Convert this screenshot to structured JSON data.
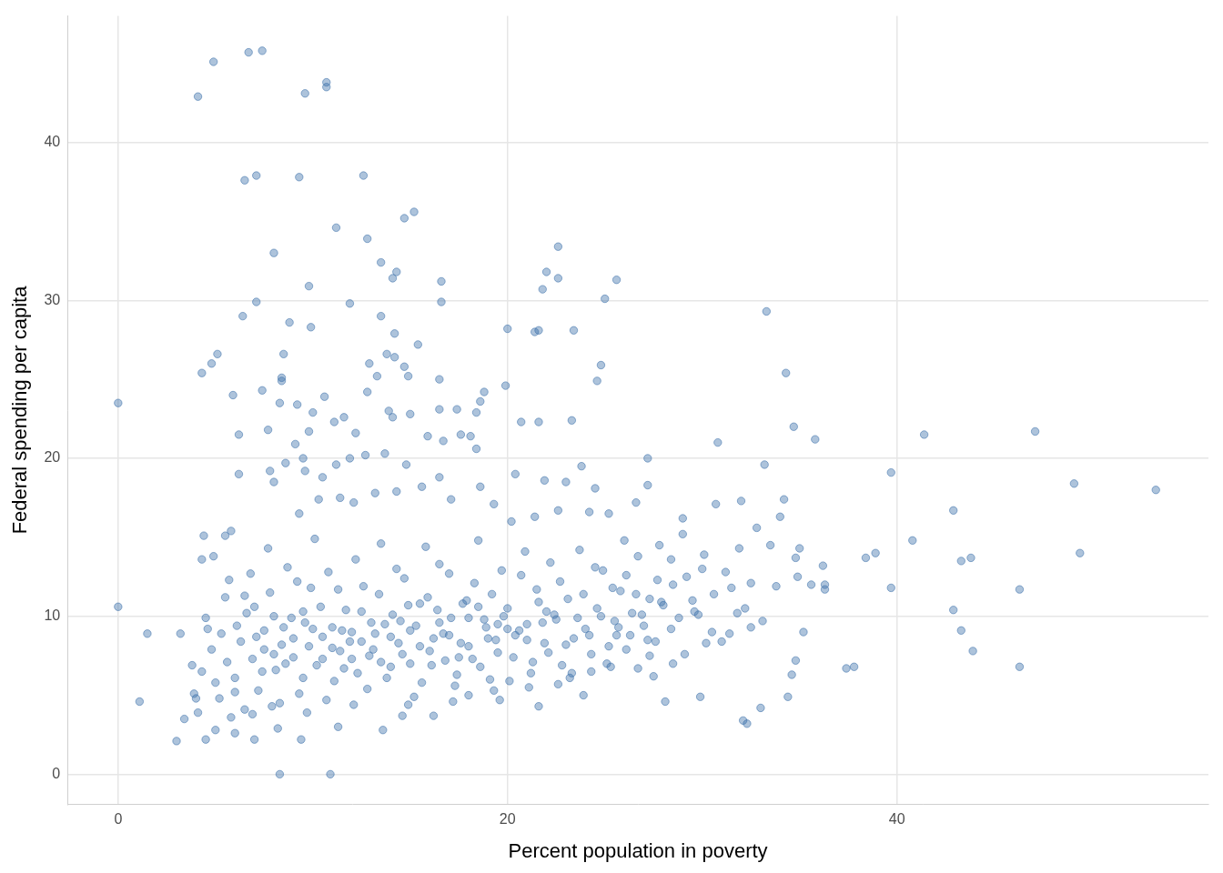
{
  "chart_data": {
    "type": "scatter",
    "x_label": "Percent population in poverty",
    "y_label": "Federal spending per capita",
    "color": "#3b6fa9",
    "marker": "circle",
    "grid": true,
    "xlim": [
      -2.6,
      56
    ],
    "ylim": [
      -1.9,
      48
    ],
    "xticks": [
      0,
      20,
      40
    ],
    "yticks": [
      0,
      10,
      20,
      30,
      40
    ],
    "x": [
      0,
      0,
      1.1,
      1.5,
      3,
      3.2,
      3.4,
      4.1,
      4.3,
      4.9,
      4.8,
      5.1,
      6.5,
      6.7,
      7.1,
      7.4,
      9.3,
      9.6,
      10.7,
      10.7,
      12.6,
      11.2,
      12.8,
      13.5,
      14.1,
      14.3,
      14.7,
      15.2,
      9.8,
      7.1,
      6.4,
      8.0,
      11.9,
      9.9,
      8.8,
      13.5,
      14.2,
      15.4,
      16.6,
      16.6,
      22,
      21.8,
      22.6,
      21.4,
      21.6,
      22.6,
      25,
      25.6,
      23.4,
      20,
      24.6,
      24.8,
      33.3,
      34.3,
      34.7,
      35.8,
      30.8,
      41.4,
      47.1,
      49.1,
      53.3,
      39.7,
      40.8,
      42.9,
      43.3,
      43.8,
      43.9,
      43.3,
      42.9,
      46.3,
      46.3,
      49.4,
      39.7,
      38.4,
      38.9,
      37.4,
      37.8,
      34.6,
      34.4,
      33.0,
      32.3,
      32.1,
      29.9,
      28.1,
      8.3,
      10.9,
      9.4,
      36.3,
      36.3,
      36.2,
      35.6,
      35,
      34.8,
      34.9,
      34.2,
      34,
      33.2,
      29,
      30.7,
      32,
      32.8,
      31.9,
      33.5,
      35.2,
      34.8,
      32.5,
      32.2,
      31.5,
      30,
      29,
      27.2,
      27.2,
      26.6,
      25.2,
      26.1,
      27.8,
      28.5,
      29.5,
      30.5,
      31,
      28.5,
      28.4,
      27.2,
      26.7,
      25.6,
      24.3,
      23.9,
      22.6,
      21.6,
      19.6,
      18,
      16.2,
      14.6,
      13.6,
      11.3,
      8.2,
      7.0,
      6.0,
      5.0,
      4.5,
      4.1,
      3.9,
      4.3,
      4.8,
      4.6,
      4.9,
      4.3,
      4.4,
      5.5,
      5.8,
      5.7,
      5.5,
      6.2,
      6.2,
      5.9,
      7.4,
      7.7,
      8.0,
      8.4,
      8.5,
      8.4,
      8.3,
      9.2,
      9.5,
      9.8,
      10,
      10.6,
      11.1,
      11.6,
      12.2,
      12.8,
      12.9,
      13.3,
      13.8,
      14.2,
      14.7,
      14.9,
      13.9,
      14.1,
      15.0,
      16.5,
      16.5,
      17.4,
      18.4,
      18.6,
      18.8,
      19.9,
      20.7,
      21.6,
      23.3,
      18.4,
      18.1,
      17.6,
      16.7,
      15.9,
      14.8,
      13.7,
      12.7,
      11.9,
      11.2,
      10.5,
      9.6,
      9.1,
      8.6,
      7.8,
      20.4,
      21.9,
      23,
      23.8,
      24.5,
      24.2,
      22.6,
      21.4,
      20.2,
      19.3,
      18.6,
      17.1,
      16.5,
      15.6,
      14.3,
      13.2,
      12.1,
      11.4,
      10.3,
      9.3,
      6,
      6.3,
      6.6,
      6.9,
      7.2,
      7.5,
      7.8,
      8.1,
      8.4,
      8.7,
      9,
      9.3,
      9.6,
      9.9,
      10.2,
      10.5,
      10.8,
      11.1,
      11.4,
      11.7,
      12,
      12.3,
      12.6,
      12.9,
      13.2,
      13.5,
      13.8,
      14.1,
      14.4,
      14.7,
      15,
      15.3,
      15.6,
      15.9,
      16.2,
      16.5,
      16.8,
      17.1,
      17.4,
      17.7,
      18,
      18.3,
      18.6,
      18.9,
      19.2,
      19.5,
      19.8,
      20.1,
      20.4,
      20.7,
      21,
      21.3,
      21.6,
      21.9,
      22.2,
      22.5,
      22.8,
      23.1,
      23.4,
      23.7,
      24,
      24.3,
      24.6,
      24.9,
      25.2,
      25.5,
      25.8,
      26.1,
      26.4,
      26.7,
      27,
      27.3,
      27.6,
      28,
      28.4,
      28.8,
      29.2,
      29.6,
      30.1,
      30.6,
      31.2,
      31.8,
      32.5,
      33.1,
      33.8,
      5.2,
      5.6,
      6.1,
      6.5,
      6.8,
      7.1,
      7.4,
      7.7,
      8,
      8.3,
      8.6,
      8.9,
      9.2,
      9.5,
      9.8,
      10.1,
      10.4,
      10.7,
      11,
      11.3,
      11.6,
      11.9,
      12.2,
      12.5,
      12.8,
      13.1,
      13.4,
      13.7,
      14,
      14.3,
      14.6,
      14.9,
      15.2,
      15.5,
      15.8,
      16.1,
      16.4,
      16.7,
      17,
      17.3,
      17.6,
      17.9,
      18.2,
      18.5,
      18.8,
      19.1,
      19.4,
      19.7,
      20,
      20.3,
      20.6,
      20.9,
      21.2,
      21.5,
      21.8,
      22.1,
      22.4,
      22.7,
      23,
      23.3,
      23.6,
      23.9,
      24.2,
      24.5,
      24.8,
      25.1,
      25.4,
      25.7,
      26,
      26.3,
      26.6,
      26.9,
      27.3,
      27.7,
      9,
      10,
      11,
      12,
      13,
      14,
      15,
      16,
      17,
      18,
      19,
      20,
      21,
      22,
      8,
      7,
      6,
      5,
      4,
      3.8,
      4.5,
      5.3,
      12.5,
      13.5,
      14.5,
      15.5,
      16.5,
      17.5,
      18.5,
      19.5,
      11.5,
      10.5,
      9.5,
      8.5,
      7.5,
      6.5,
      5.8,
      6.9,
      7.9,
      9.7,
      12.1,
      14.9,
      17.2,
      19.3,
      21.1,
      23.2,
      25.3,
      27.5,
      29.1,
      30.2,
      31.4,
      29.8,
      27.9
    ],
    "values": [
      23.5,
      10.6,
      4.6,
      8.9,
      2.1,
      8.9,
      3.5,
      42.9,
      25.4,
      45.1,
      26,
      26.6,
      37.6,
      45.7,
      37.9,
      45.8,
      37.8,
      43.1,
      43.8,
      43.5,
      37.9,
      34.6,
      33.9,
      32.4,
      31.4,
      31.8,
      35.2,
      35.6,
      30.9,
      29.9,
      29,
      33,
      29.8,
      28.3,
      28.6,
      29,
      27.9,
      27.2,
      31.2,
      29.9,
      31.8,
      30.7,
      31.4,
      28,
      28.1,
      33.4,
      30.1,
      31.3,
      28.1,
      28.2,
      24.9,
      25.9,
      29.3,
      25.4,
      22,
      21.2,
      21,
      21.5,
      21.7,
      18.4,
      18,
      19.1,
      14.8,
      16.7,
      13.5,
      13.7,
      7.8,
      9.1,
      10.4,
      11.7,
      6.8,
      14,
      11.8,
      13.7,
      14,
      6.7,
      6.8,
      6.3,
      4.9,
      4.2,
      3.2,
      3.4,
      4.9,
      4.6,
      0,
      0,
      2.2,
      12,
      11.7,
      13.2,
      12,
      14.3,
      13.7,
      12.5,
      17.4,
      16.3,
      19.6,
      16.2,
      17.1,
      17.3,
      15.6,
      14.3,
      14.5,
      9,
      7.2,
      9.3,
      10.5,
      11.8,
      13,
      15.2,
      20,
      18.3,
      17.2,
      16.5,
      12.6,
      14.5,
      12,
      11,
      9,
      8.4,
      7,
      9.2,
      8.5,
      6.7,
      8.8,
      6.5,
      5,
      5.7,
      4.3,
      4.7,
      5,
      3.7,
      3.7,
      2.8,
      3,
      2.9,
      2.2,
      2.6,
      2.8,
      2.2,
      3.9,
      5.1,
      6.5,
      7.9,
      9.2,
      13.8,
      13.6,
      15.1,
      15.1,
      15.4,
      12.3,
      11.2,
      21.5,
      19,
      24,
      24.3,
      21.8,
      18.5,
      25.1,
      26.6,
      24.9,
      23.5,
      23.4,
      20,
      21.7,
      22.9,
      23.9,
      22.3,
      22.6,
      21.6,
      24.2,
      26,
      25.2,
      26.6,
      26.4,
      25.8,
      25.2,
      23,
      22.6,
      22.8,
      25,
      23.1,
      23.1,
      22.9,
      23.6,
      24.2,
      24.6,
      22.3,
      22.3,
      22.4,
      20.6,
      21.4,
      21.5,
      21.1,
      21.4,
      19.6,
      20.3,
      20.2,
      20,
      19.6,
      18.8,
      19.2,
      20.9,
      19.7,
      19.2,
      19,
      18.6,
      18.5,
      19.5,
      18.1,
      16.6,
      16.7,
      16.3,
      16,
      17.1,
      18.2,
      17.4,
      18.8,
      18.2,
      17.9,
      17.8,
      17.2,
      17.5,
      17.4,
      16.5,
      6.1,
      8.4,
      10.2,
      7.3,
      5.3,
      9.1,
      11.5,
      6.6,
      8.2,
      13.1,
      7.4,
      5.1,
      9.6,
      11.8,
      6.9,
      8.7,
      12.8,
      5.9,
      7.8,
      10.4,
      9,
      6.4,
      11.9,
      7.5,
      8.9,
      14.6,
      6.1,
      10.1,
      8.3,
      12.4,
      7,
      9.4,
      5.8,
      11.2,
      8.6,
      13.3,
      7.2,
      9.9,
      6.3,
      10.8,
      8.1,
      12.1,
      6.8,
      9.3,
      11.4,
      7.7,
      10,
      5.9,
      8.8,
      12.6,
      9.5,
      7.1,
      10.9,
      8.3,
      13.4,
      9.8,
      6.9,
      11.1,
      8.6,
      14.2,
      9.2,
      7.6,
      10.5,
      12.9,
      8.1,
      9.7,
      11.6,
      7.9,
      10.2,
      13.8,
      9.4,
      11.1,
      8.4,
      10.7,
      13.6,
      9.9,
      12.5,
      10.3,
      13.9,
      11.4,
      12.8,
      10.2,
      12.1,
      9.7,
      11.9,
      4.8,
      7.1,
      9.4,
      4.1,
      12.7,
      8.7,
      6.5,
      14.3,
      10,
      4.5,
      7,
      9.9,
      12.2,
      6.1,
      8.1,
      14.9,
      10.6,
      4.7,
      9.3,
      11.7,
      6.7,
      8.4,
      13.6,
      10.3,
      5.4,
      7.9,
      11.4,
      9.5,
      6.8,
      13,
      7.6,
      10.7,
      4.9,
      8.1,
      14.4,
      6.9,
      10.4,
      8.9,
      12.7,
      5.6,
      8.3,
      11,
      7.3,
      14.8,
      9.8,
      6,
      8.5,
      12.9,
      10.5,
      7.4,
      9.1,
      14.1,
      6.4,
      11.7,
      9.6,
      7.7,
      10.1,
      12.2,
      8.2,
      6.4,
      9.9,
      11.4,
      8.8,
      13.1,
      10,
      7,
      11.8,
      9.3,
      14.8,
      8.8,
      11.4,
      10.1,
      7.5,
      12.3,
      8.6,
      9.2,
      8,
      7.3,
      9.6,
      8.7,
      9.1,
      7.8,
      8.8,
      9.9,
      8.6,
      9.2,
      8.5,
      10.3,
      7.6,
      10.6,
      5.2,
      5.8,
      4.8,
      6.9,
      9.9,
      8.9,
      8.4,
      7.1,
      9.7,
      10.8,
      9.6,
      7.4,
      10.6,
      9.5,
      9.1,
      7.3,
      10.3,
      9.3,
      7.9,
      11.3,
      3.6,
      3.8,
      4.3,
      3.9,
      4.4,
      4.4,
      4.6,
      5.3,
      5.5,
      6.1,
      6.8,
      6.2,
      7.6,
      8.3,
      8.9,
      10.1,
      10.9
    ]
  }
}
